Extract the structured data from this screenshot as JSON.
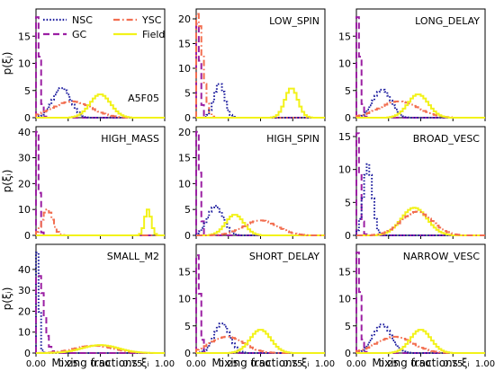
{
  "figure": {
    "ylabel": "p(ξᵢ)",
    "xlabel": "Mixing fractions ξᵢ"
  },
  "colors": {
    "NSC": "#1f1f9f",
    "GC": "#9b1fa3",
    "YSC": "#f26e50",
    "Field": "#f2f21a"
  },
  "legend": [
    {
      "name": "NSC",
      "style": "dotted"
    },
    {
      "name": "GC",
      "style": "dashed"
    },
    {
      "name": "YSC",
      "style": "dashdot"
    },
    {
      "name": "Field",
      "style": "solid"
    }
  ],
  "chart_data": [
    {
      "type": "histogram",
      "label": "A5F05",
      "ylim": [
        0,
        20
      ],
      "yticks": [
        0,
        5,
        10,
        15
      ],
      "xlim": [
        0,
        1
      ],
      "xticks": [
        "0.00",
        "0.25",
        "0.50",
        "0.75",
        "1.00"
      ],
      "xticks_shown": false,
      "series": [
        {
          "name": "GC",
          "peak_x": 0.01,
          "peak_y": 18.5,
          "width": 0.02
        },
        {
          "name": "NSC",
          "peak_x": 0.2,
          "peak_y": 5.5,
          "width": 0.07
        },
        {
          "name": "YSC",
          "peak_x": 0.28,
          "peak_y": 3.0,
          "width": 0.15
        },
        {
          "name": "Field",
          "peak_x": 0.5,
          "peak_y": 4.3,
          "width": 0.08
        }
      ]
    },
    {
      "type": "histogram",
      "label": "LOW_SPIN",
      "ylim": [
        0,
        22
      ],
      "yticks": [
        0,
        5,
        10,
        15,
        20
      ],
      "xlim": [
        0,
        1
      ],
      "xticks": [
        "0.00",
        "0.25",
        "0.50",
        "0.75",
        "1.00"
      ],
      "xticks_shown": false,
      "series": [
        {
          "name": "GC",
          "peak_x": 0.01,
          "peak_y": 19.0,
          "width": 0.02
        },
        {
          "name": "YSC",
          "peak_x": 0.01,
          "peak_y": 21.0,
          "width": 0.04
        },
        {
          "name": "NSC",
          "peak_x": 0.18,
          "peak_y": 7.0,
          "width": 0.04
        },
        {
          "name": "Field",
          "peak_x": 0.74,
          "peak_y": 6.0,
          "width": 0.05
        }
      ]
    },
    {
      "type": "histogram",
      "label": "LONG_DELAY",
      "ylim": [
        0,
        20
      ],
      "yticks": [
        0,
        5,
        10,
        15
      ],
      "xlim": [
        0,
        1
      ],
      "xticks": [
        "0.00",
        "0.25",
        "0.50",
        "0.75",
        "1.00"
      ],
      "xticks_shown": false,
      "series": [
        {
          "name": "GC",
          "peak_x": 0.01,
          "peak_y": 18.5,
          "width": 0.02
        },
        {
          "name": "NSC",
          "peak_x": 0.2,
          "peak_y": 5.2,
          "width": 0.07
        },
        {
          "name": "YSC",
          "peak_x": 0.33,
          "peak_y": 3.0,
          "width": 0.15
        },
        {
          "name": "Field",
          "peak_x": 0.48,
          "peak_y": 4.3,
          "width": 0.08
        }
      ]
    },
    {
      "type": "histogram",
      "label": "HIGH_MASS",
      "ylim": [
        0,
        42
      ],
      "yticks": [
        0,
        10,
        20,
        30,
        40
      ],
      "xlim": [
        0,
        1
      ],
      "xticks": [
        "0.00",
        "0.25",
        "0.50",
        "0.75",
        "1.00"
      ],
      "xticks_shown": false,
      "series": [
        {
          "name": "GC",
          "peak_x": 0.01,
          "peak_y": 40.0,
          "width": 0.015
        },
        {
          "name": "YSC",
          "peak_x": 0.09,
          "peak_y": 10.0,
          "width": 0.04
        },
        {
          "name": "Field",
          "peak_x": 0.87,
          "peak_y": 10.0,
          "width": 0.025
        }
      ]
    },
    {
      "type": "histogram",
      "label": "HIGH_SPIN",
      "ylim": [
        0,
        21
      ],
      "yticks": [
        0,
        5,
        10,
        15,
        20
      ],
      "xlim": [
        0,
        1
      ],
      "xticks": [
        "0.00",
        "0.25",
        "0.50",
        "0.75",
        "1.00"
      ],
      "xticks_shown": false,
      "series": [
        {
          "name": "GC",
          "peak_x": 0.01,
          "peak_y": 20.0,
          "width": 0.02
        },
        {
          "name": "NSC",
          "peak_x": 0.15,
          "peak_y": 5.7,
          "width": 0.06
        },
        {
          "name": "Field",
          "peak_x": 0.3,
          "peak_y": 4.0,
          "width": 0.07
        },
        {
          "name": "YSC",
          "peak_x": 0.5,
          "peak_y": 2.9,
          "width": 0.13
        }
      ]
    },
    {
      "type": "histogram",
      "label": "BROAD_VESC",
      "ylim": [
        0,
        16.5
      ],
      "yticks": [
        0,
        5,
        10,
        15
      ],
      "xlim": [
        0,
        1
      ],
      "xticks": [
        "0.00",
        "0.25",
        "0.50",
        "0.75",
        "1.00"
      ],
      "xticks_shown": false,
      "series": [
        {
          "name": "GC",
          "peak_x": 0.01,
          "peak_y": 15.5,
          "width": 0.02
        },
        {
          "name": "NSC",
          "peak_x": 0.09,
          "peak_y": 10.8,
          "width": 0.035
        },
        {
          "name": "Field",
          "peak_x": 0.45,
          "peak_y": 4.2,
          "width": 0.1
        },
        {
          "name": "YSC",
          "peak_x": 0.47,
          "peak_y": 3.6,
          "width": 0.12
        }
      ]
    },
    {
      "type": "histogram",
      "label": "SMALL_M2",
      "ylim": [
        0,
        52
      ],
      "yticks": [
        0,
        10,
        20,
        30,
        40
      ],
      "xlim": [
        0,
        1
      ],
      "xticks": [
        "0.00",
        "0.25",
        "0.50",
        "0.75",
        "1.00"
      ],
      "xticks_shown": true,
      "series": [
        {
          "name": "NSC",
          "peak_x": 0.01,
          "peak_y": 48.0,
          "width": 0.015
        },
        {
          "name": "GC",
          "peak_x": 0.02,
          "peak_y": 38.0,
          "width": 0.04
        },
        {
          "name": "YSC",
          "peak_x": 0.45,
          "peak_y": 3.5,
          "width": 0.15
        },
        {
          "name": "Field",
          "peak_x": 0.5,
          "peak_y": 3.8,
          "width": 0.14
        }
      ]
    },
    {
      "type": "histogram",
      "label": "SHORT_DELAY",
      "ylim": [
        0,
        20
      ],
      "yticks": [
        0,
        5,
        10,
        15
      ],
      "xlim": [
        0,
        1
      ],
      "xticks": [
        "0.00",
        "0.25",
        "0.50",
        "0.75",
        "1.00"
      ],
      "xticks_shown": true,
      "series": [
        {
          "name": "GC",
          "peak_x": 0.01,
          "peak_y": 18.0,
          "width": 0.02
        },
        {
          "name": "NSC",
          "peak_x": 0.2,
          "peak_y": 5.5,
          "width": 0.06
        },
        {
          "name": "YSC",
          "peak_x": 0.24,
          "peak_y": 3.0,
          "width": 0.13
        },
        {
          "name": "Field",
          "peak_x": 0.5,
          "peak_y": 4.3,
          "width": 0.08
        }
      ]
    },
    {
      "type": "histogram",
      "label": "NARROW_VESC",
      "ylim": [
        0,
        20
      ],
      "yticks": [
        0,
        5,
        10,
        15
      ],
      "xlim": [
        0,
        1
      ],
      "xticks": [
        "0.00",
        "0.25",
        "0.50",
        "0.75",
        "1.00"
      ],
      "xticks_shown": true,
      "series": [
        {
          "name": "GC",
          "peak_x": 0.01,
          "peak_y": 18.5,
          "width": 0.02
        },
        {
          "name": "NSC",
          "peak_x": 0.2,
          "peak_y": 5.3,
          "width": 0.07
        },
        {
          "name": "YSC",
          "peak_x": 0.3,
          "peak_y": 3.0,
          "width": 0.14
        },
        {
          "name": "Field",
          "peak_x": 0.5,
          "peak_y": 4.3,
          "width": 0.08
        }
      ]
    }
  ]
}
